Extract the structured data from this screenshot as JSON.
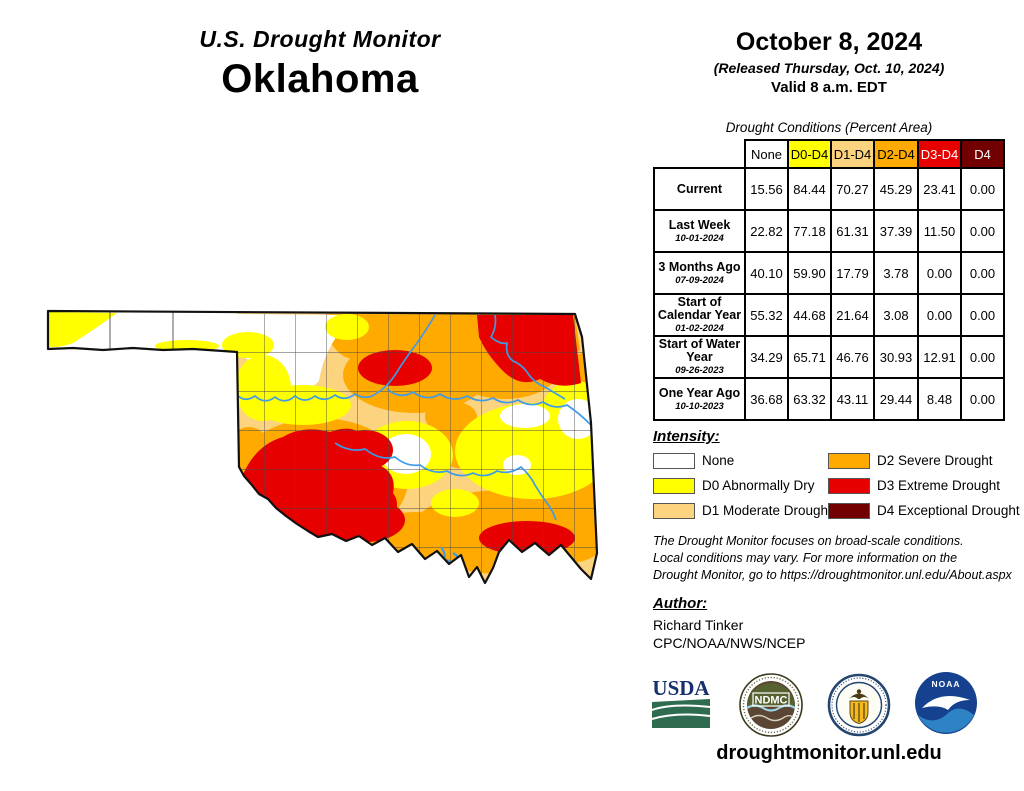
{
  "header": {
    "title": "U.S. Drought Monitor",
    "state": "Oklahoma",
    "date": "October 8, 2024",
    "released": "(Released Thursday, Oct. 10, 2024)",
    "valid": "Valid 8 a.m. EDT"
  },
  "table": {
    "caption": "Drought Conditions (Percent Area)",
    "columns": [
      {
        "label": "None",
        "bg": "#FFFFFF",
        "fg": "#000000"
      },
      {
        "label": "D0-D4",
        "bg": "#FFFF00",
        "fg": "#000000"
      },
      {
        "label": "D1-D4",
        "bg": "#FCD37F",
        "fg": "#000000"
      },
      {
        "label": "D2-D4",
        "bg": "#FFAA00",
        "fg": "#000000"
      },
      {
        "label": "D3-D4",
        "bg": "#E60000",
        "fg": "#FFFFFF"
      },
      {
        "label": "D4",
        "bg": "#730000",
        "fg": "#FFFFFF"
      }
    ],
    "rows": [
      {
        "label": "Current",
        "date": "",
        "values": [
          "15.56",
          "84.44",
          "70.27",
          "45.29",
          "23.41",
          "0.00"
        ]
      },
      {
        "label": "Last Week",
        "date": "10-01-2024",
        "values": [
          "22.82",
          "77.18",
          "61.31",
          "37.39",
          "11.50",
          "0.00"
        ]
      },
      {
        "label": "3 Months Ago",
        "date": "07-09-2024",
        "values": [
          "40.10",
          "59.90",
          "17.79",
          "3.78",
          "0.00",
          "0.00"
        ]
      },
      {
        "label": "Start of Calendar Year",
        "date": "01-02-2024",
        "values": [
          "55.32",
          "44.68",
          "21.64",
          "3.08",
          "0.00",
          "0.00"
        ]
      },
      {
        "label": "Start of Water Year",
        "date": "09-26-2023",
        "values": [
          "34.29",
          "65.71",
          "46.76",
          "30.93",
          "12.91",
          "0.00"
        ]
      },
      {
        "label": "One Year Ago",
        "date": "10-10-2023",
        "values": [
          "36.68",
          "63.32",
          "43.11",
          "29.44",
          "8.48",
          "0.00"
        ]
      }
    ]
  },
  "legend": {
    "heading": "Intensity:",
    "items": [
      {
        "label": "None",
        "color": "#FFFFFF"
      },
      {
        "label": "D0 Abnormally Dry",
        "color": "#FFFF00"
      },
      {
        "label": "D1 Moderate Drought",
        "color": "#FCD37F"
      },
      {
        "label": "D2 Severe Drought",
        "color": "#FFAA00"
      },
      {
        "label": "D3 Extreme Drought",
        "color": "#E60000"
      },
      {
        "label": "D4 Exceptional Drought",
        "color": "#730000"
      }
    ]
  },
  "notes": {
    "line1": "The Drought Monitor focuses on broad-scale conditions.",
    "line2": "Local conditions may vary. For more information on the",
    "line3": "Drought Monitor, go to https://droughtmonitor.unl.edu/About.aspx"
  },
  "author": {
    "heading": "Author:",
    "name": "Richard Tinker",
    "org": "CPC/NOAA/NWS/NCEP"
  },
  "footer": {
    "website": "droughtmonitor.unl.edu"
  },
  "logos": {
    "usda": "USDA",
    "ndmc": "NDMC",
    "noaa": "NOAA"
  },
  "map": {
    "state": "Oklahoma",
    "colors": {
      "none": "#FFFFFF",
      "d0": "#FFFF00",
      "d1": "#FCD37F",
      "d2": "#FFAA00",
      "d3": "#E60000",
      "d4": "#730000"
    },
    "river_color": "#3D9BE9",
    "border_color": "#111111",
    "county_line_color": "#4a4a4a"
  }
}
